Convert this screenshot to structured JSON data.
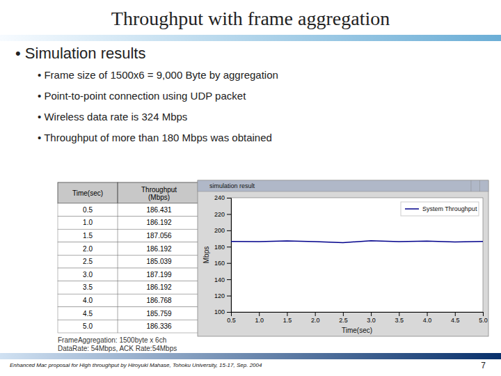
{
  "chart_data": {
    "type": "line",
    "title": "Throughput with frame aggregation",
    "x_label": "Time(sec)",
    "y_label": "Mbps",
    "x": [
      0.5,
      1.0,
      1.5,
      2.0,
      2.5,
      3.0,
      3.5,
      4.0,
      4.5,
      5.0
    ],
    "series": [
      {
        "name": "System Throughput",
        "color": "#00008b",
        "values": [
          186.431,
          186.192,
          187.056,
          186.192,
          185.039,
          187.199,
          186.192,
          186.768,
          185.759,
          186.336
        ]
      }
    ],
    "xlim": [
      0.5,
      5
    ],
    "ylim": [
      100,
      240
    ],
    "xticks": [
      0.5,
      {
        "value": 1,
        "label": "1.0"
      },
      1.5,
      {
        "value": 2,
        "label": "2.0"
      },
      2.5,
      {
        "value": 3,
        "label": "3.0"
      },
      3.5,
      {
        "value": 4,
        "label": "4.0"
      },
      4.5,
      {
        "value": 5,
        "label": "5.0"
      }
    ],
    "yticks": [
      100,
      120,
      140,
      160,
      180,
      200,
      220,
      240
    ],
    "legend": "upper right",
    "grid": false,
    "annotations": [
      "•  Simulation results",
      "•  Frame size of 1500x6 = 9,000 Byte by aggregation",
      "•  Point-to-point connection using UDP packet",
      "•  Wireless data rate is 324 Mbps",
      "•  Throughput of more than 180 Mbps was obtained",
      "FrameAggregation: 1500byte x 6ch",
      "DataRate: 54Mbps, ACK Rate:54Mbps",
      "simulation result",
      "Enhanced Mac proposal for High throughput by Hiroyuki Mahase, Tohoku University, 15-17, Sep. 2004",
      "7"
    ],
    "table": {
      "headers": [
        "Time(sec)",
        "Throughput\n(Mbps)"
      ],
      "rows": [
        [
          "0.5",
          "186.431"
        ],
        [
          "1.0",
          "186.192"
        ],
        [
          "1.5",
          "187.056"
        ],
        [
          "2.0",
          "186.192"
        ],
        [
          "2.5",
          "185.039"
        ],
        [
          "3.0",
          "187.199"
        ],
        [
          "3.5",
          "186.192"
        ],
        [
          "4.0",
          "186.768"
        ],
        [
          "4.5",
          "185.759"
        ],
        [
          "5.0",
          "186.336"
        ]
      ]
    }
  }
}
